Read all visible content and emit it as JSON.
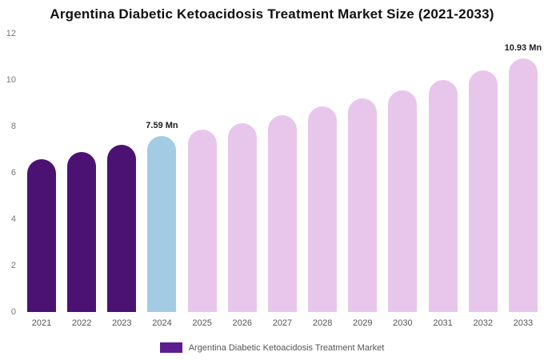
{
  "title": "Argentina Diabetic Ketoacidosis Treatment Market Size (2021-2033)",
  "legend": {
    "label": "Argentina Diabetic Ketoacidosis Treatment Market",
    "color": "#5e1d8f"
  },
  "colors": {
    "historical": "#4b1274",
    "current": "#a3cce4",
    "forecast": "#e8c6ec"
  },
  "chart_data": {
    "type": "bar",
    "title": "Argentina Diabetic Ketoacidosis Treatment Market Size (2021-2033)",
    "xlabel": "",
    "ylabel": "",
    "ylim": [
      0,
      12
    ],
    "yticks": [
      0,
      2,
      4,
      6,
      8,
      10,
      12
    ],
    "grid": false,
    "legend_position": "bottom",
    "categories": [
      "2021",
      "2022",
      "2023",
      "2024",
      "2025",
      "2026",
      "2027",
      "2028",
      "2029",
      "2030",
      "2031",
      "2032",
      "2033"
    ],
    "values": [
      6.6,
      6.9,
      7.2,
      7.59,
      7.85,
      8.15,
      8.5,
      8.85,
      9.2,
      9.55,
      10.0,
      10.4,
      10.93
    ],
    "groups": [
      "historical",
      "historical",
      "historical",
      "current",
      "forecast",
      "forecast",
      "forecast",
      "forecast",
      "forecast",
      "forecast",
      "forecast",
      "forecast",
      "forecast"
    ],
    "annotations": {
      "2024": "7.59 Mn",
      "2033": "10.93 Mn"
    }
  }
}
